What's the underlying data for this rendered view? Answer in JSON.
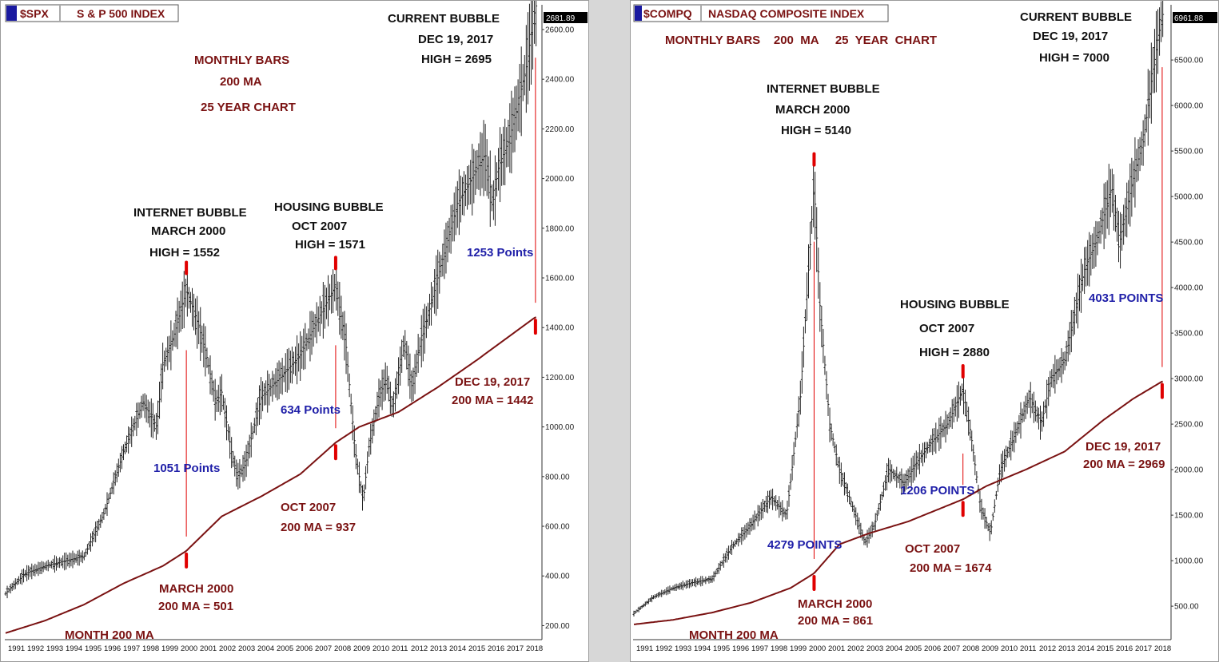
{
  "colors": {
    "bars": "#222222",
    "ma": "#7a1212",
    "marker": "#e00000",
    "maroon_text": "#7a1212",
    "blue_text": "#1f1fa8",
    "black_text": "#111111",
    "header_bg": "#1a1aa0"
  },
  "chart_data": [
    {
      "type": "line",
      "series_style": "ohlc-bars",
      "header": {
        "symbol": "$SPX",
        "name": "S & P 500 INDEX"
      },
      "last_price_label": "2681.89",
      "ylim": [
        150,
        2690
      ],
      "yticks": [
        200,
        400,
        600,
        800,
        1000,
        1200,
        1400,
        1600,
        1800,
        2000,
        2200,
        2400,
        2600
      ],
      "ytick_labels": [
        "200.00",
        "400.00",
        "600.00",
        "800.00",
        "1000.00",
        "1200.00",
        "1400.00",
        "1600.00",
        "1800.00",
        "2000.00",
        "2200.00",
        "2400.00",
        "2600.00"
      ],
      "x_tick_labels": [
        "1991",
        "1992",
        "1993",
        "1994",
        "1995",
        "1996",
        "1997",
        "1998",
        "1999",
        "2000",
        "2001",
        "2002",
        "2003",
        "2004",
        "2005",
        "2006",
        "2007",
        "2008",
        "2009",
        "2010",
        "2011",
        "2012",
        "2013",
        "2014",
        "2015",
        "2016",
        "2017",
        "2018"
      ],
      "xlim": [
        1991.0,
        2018.3
      ],
      "series": [
        {
          "name": "",
          "x": [
            1991.0,
            1992.0,
            1993.0,
            1994.0,
            1995.0,
            1996.0,
            1997.0,
            1998.0,
            1998.7,
            1999.0,
            1999.5,
            2000.2,
            2000.7,
            2001.2,
            2001.7,
            2002.0,
            2002.5,
            2002.8,
            2003.2,
            2004.0,
            2005.0,
            2006.0,
            2007.0,
            2007.8,
            2008.3,
            2008.8,
            2009.2,
            2009.5,
            2010.0,
            2010.4,
            2010.7,
            2011.3,
            2011.7,
            2012.0,
            2013.0,
            2014.0,
            2014.6,
            2015.4,
            2015.8,
            2016.1,
            2016.6,
            2017.0,
            2017.5,
            2017.97
          ],
          "y": [
            330,
            410,
            440,
            460,
            480,
            650,
            900,
            1100,
            1000,
            1250,
            1350,
            1552,
            1440,
            1300,
            1100,
            1140,
            900,
            800,
            850,
            1120,
            1200,
            1290,
            1450,
            1571,
            1350,
            900,
            700,
            920,
            1120,
            1200,
            1070,
            1350,
            1150,
            1300,
            1600,
            1900,
            1980,
            2100,
            1900,
            2050,
            2150,
            2270,
            2450,
            2695
          ]
        },
        {
          "name": "MONTH 200 MA",
          "x": [
            1991.0,
            1993.0,
            1995.0,
            1997.0,
            1999.0,
            2000.2,
            2002.0,
            2004.0,
            2006.0,
            2007.8,
            2009.0,
            2011.0,
            2013.0,
            2015.0,
            2017.97
          ],
          "y": [
            170,
            220,
            285,
            370,
            440,
            501,
            640,
            720,
            810,
            937,
            1000,
            1060,
            1160,
            1270,
            1442
          ]
        }
      ]
    },
    {
      "type": "line",
      "series_style": "ohlc-bars",
      "header": {
        "symbol": "$COMPQ",
        "name": "NASDAQ COMPOSITE INDEX"
      },
      "last_price_label": "6961.88",
      "ylim": [
        150,
        7080
      ],
      "yticks": [
        500,
        1000,
        1500,
        2000,
        2500,
        3000,
        3500,
        4000,
        4500,
        5000,
        5500,
        6000,
        6500
      ],
      "ytick_labels": [
        "500.00",
        "1000.00",
        "1500.00",
        "2000.00",
        "2500.00",
        "3000.00",
        "3500.00",
        "4000.00",
        "4500.00",
        "5000.00",
        "5500.00",
        "6000.00",
        "6500.00"
      ],
      "x_tick_labels": [
        "1991",
        "1992",
        "1993",
        "1994",
        "1995",
        "1996",
        "1997",
        "1998",
        "1999",
        "2000",
        "2001",
        "2002",
        "2003",
        "2004",
        "2005",
        "2006",
        "2007",
        "2008",
        "2009",
        "2010",
        "2011",
        "2012",
        "2013",
        "2014",
        "2015",
        "2016",
        "2017",
        "2018"
      ],
      "xlim": [
        1991.0,
        2018.3
      ],
      "series": [
        {
          "name": "",
          "x": [
            1991.0,
            1992.0,
            1993.0,
            1994.0,
            1995.0,
            1996.0,
            1997.0,
            1998.0,
            1998.8,
            1999.5,
            2000.2,
            2000.5,
            2001.0,
            2001.5,
            2002.0,
            2002.8,
            2003.3,
            2004.0,
            2004.8,
            2005.5,
            2006.2,
            2007.0,
            2007.8,
            2008.2,
            2008.7,
            2009.2,
            2009.7,
            2010.3,
            2011.2,
            2011.8,
            2012.3,
            2013.0,
            2014.0,
            2014.6,
            2015.4,
            2015.8,
            2016.1,
            2016.6,
            2017.0,
            2017.5,
            2017.97
          ],
          "y": [
            420,
            600,
            700,
            760,
            800,
            1150,
            1400,
            1700,
            1500,
            2800,
            5140,
            3800,
            2500,
            2000,
            1700,
            1200,
            1400,
            2000,
            1850,
            2100,
            2300,
            2500,
            2880,
            2400,
            1600,
            1300,
            2000,
            2300,
            2800,
            2500,
            3000,
            3200,
            4200,
            4500,
            5100,
            4500,
            4800,
            5300,
            5600,
            6400,
            7000
          ]
        },
        {
          "name": "MONTH 200 MA",
          "x": [
            1991.0,
            1993.0,
            1995.0,
            1997.0,
            1999.0,
            2000.2,
            2001.5,
            2003.0,
            2005.0,
            2007.8,
            2009.0,
            2011.0,
            2013.0,
            2015.0,
            2016.5,
            2017.97
          ],
          "y": [
            300,
            350,
            430,
            540,
            700,
            861,
            1180,
            1300,
            1430,
            1674,
            1820,
            2000,
            2200,
            2550,
            2780,
            2969
          ]
        }
      ]
    }
  ],
  "annotations": {
    "spx": {
      "subtitle_1": "MONTHLY BARS",
      "subtitle_2": "200 MA",
      "subtitle_3": "25 YEAR CHART",
      "internet_1": "INTERNET BUBBLE",
      "internet_2": "MARCH  2000",
      "internet_3": "HIGH = 1552",
      "housing_1": "HOUSING  BUBBLE",
      "housing_2": "OCT  2007",
      "housing_3": "HIGH = 1571",
      "current_1": "CURRENT  BUBBLE",
      "current_2": "DEC 19, 2017",
      "current_3": "HIGH = 2695",
      "pts_2000": "1051 Points",
      "pts_2007": "634 Points",
      "pts_2017": "1253 Points",
      "ma2000_1": "MARCH  2000",
      "ma2000_2": "200 MA = 501",
      "ma2007_1": "OCT   2007",
      "ma2007_2": "200 MA = 937",
      "ma2017_1": "DEC  19, 2017",
      "ma2017_2": "200 MA = 1442",
      "ma_label": "MONTH  200 MA"
    },
    "compq": {
      "subtitle": "MONTHLY BARS    200  MA     25  YEAR  CHART",
      "internet_1": "INTERNET BUBBLE",
      "internet_2": "MARCH  2000",
      "internet_3": "HIGH = 5140",
      "housing_1": "HOUSING  BUBBLE",
      "housing_2": "OCT  2007",
      "housing_3": "HIGH = 2880",
      "current_1": "CURRENT  BUBBLE",
      "current_2": "DEC 19, 2017",
      "current_3": "HIGH = 7000",
      "pts_2000": "4279 POINTS",
      "pts_2007": "1206 POINTS",
      "pts_2017": "4031 POINTS",
      "ma2000_1": "MARCH  2000",
      "ma2000_2": "200 MA = 861",
      "ma2007_1": "OCT   2007",
      "ma2007_2": "200 MA = 1674",
      "ma2017_1": "DEC 19, 2017",
      "ma2017_2": "200 MA = 2969",
      "ma_label": "MONTH  200 MA"
    }
  }
}
